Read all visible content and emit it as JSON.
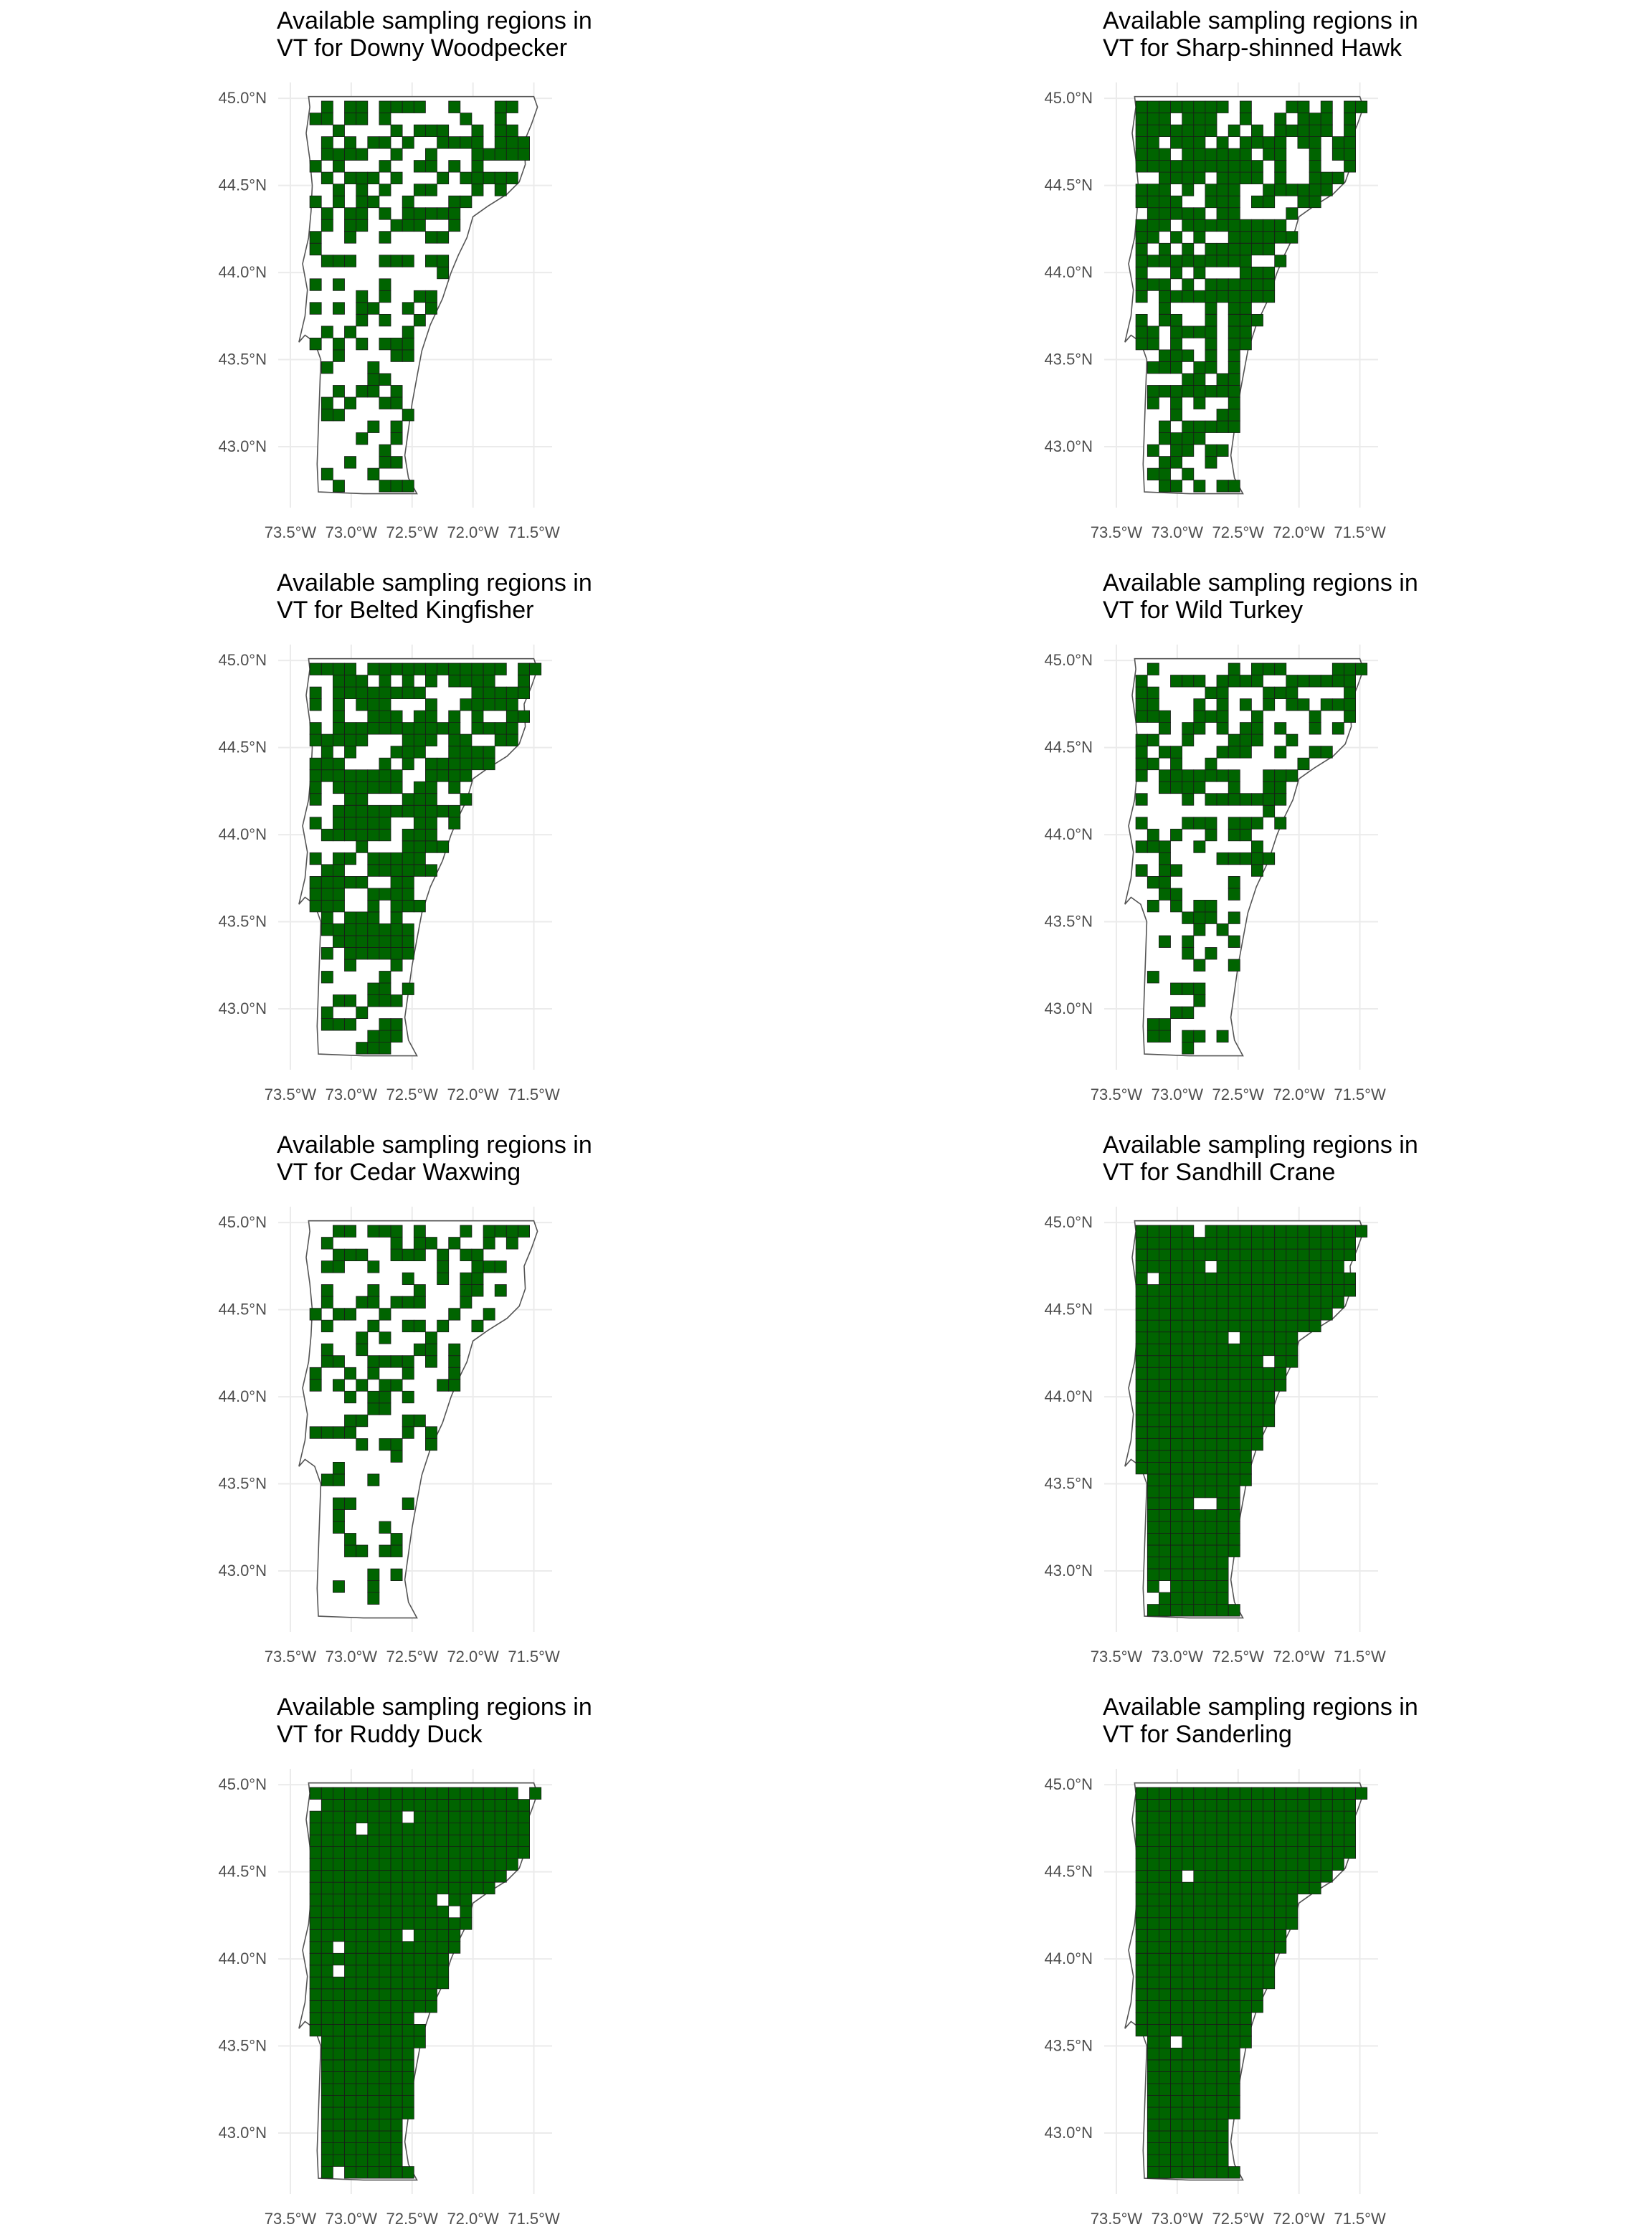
{
  "page": {
    "panels": [
      {
        "title_line1": "Available sampling regions in",
        "title_line2": "VT for Downy Woodpecker",
        "coverage": 0.32
      },
      {
        "title_line1": "Available sampling regions in",
        "title_line2": "VT for Sharp-shinned Hawk",
        "coverage": 0.62
      },
      {
        "title_line1": "Available sampling regions in",
        "title_line2": "VT for Belted Kingfisher",
        "coverage": 0.58
      },
      {
        "title_line1": "Available sampling regions in",
        "title_line2": "VT for Wild Turkey",
        "coverage": 0.36
      },
      {
        "title_line1": "Available sampling regions in",
        "title_line2": "VT for Cedar Waxwing",
        "coverage": 0.26
      },
      {
        "title_line1": "Available sampling regions in",
        "title_line2": "VT for Sandhill Crane",
        "coverage": 0.97
      },
      {
        "title_line1": "Available sampling regions in",
        "title_line2": "VT for Ruddy Duck",
        "coverage": 0.97
      },
      {
        "title_line1": "Available sampling regions in",
        "title_line2": "VT for Sanderling",
        "coverage": 0.995
      }
    ]
  },
  "axes": {
    "y_ticks": [
      {
        "value": 45.0,
        "label": "45.0°N"
      },
      {
        "value": 44.5,
        "label": "44.5°N"
      },
      {
        "value": 44.0,
        "label": "44.0°N"
      },
      {
        "value": 43.5,
        "label": "43.5°N"
      },
      {
        "value": 43.0,
        "label": "43.0°N"
      }
    ],
    "x_ticks": [
      {
        "value": -73.5,
        "label": "73.5°W"
      },
      {
        "value": -73.0,
        "label": "73.0°W"
      },
      {
        "value": -72.5,
        "label": "72.5°W"
      },
      {
        "value": -72.0,
        "label": "72.0°W"
      },
      {
        "value": -71.5,
        "label": "71.5°W"
      }
    ]
  },
  "colors": {
    "fill": "#006400",
    "cell_border": "#1a1a1a",
    "outline": "#555555",
    "grid": "#ebebeb"
  }
}
